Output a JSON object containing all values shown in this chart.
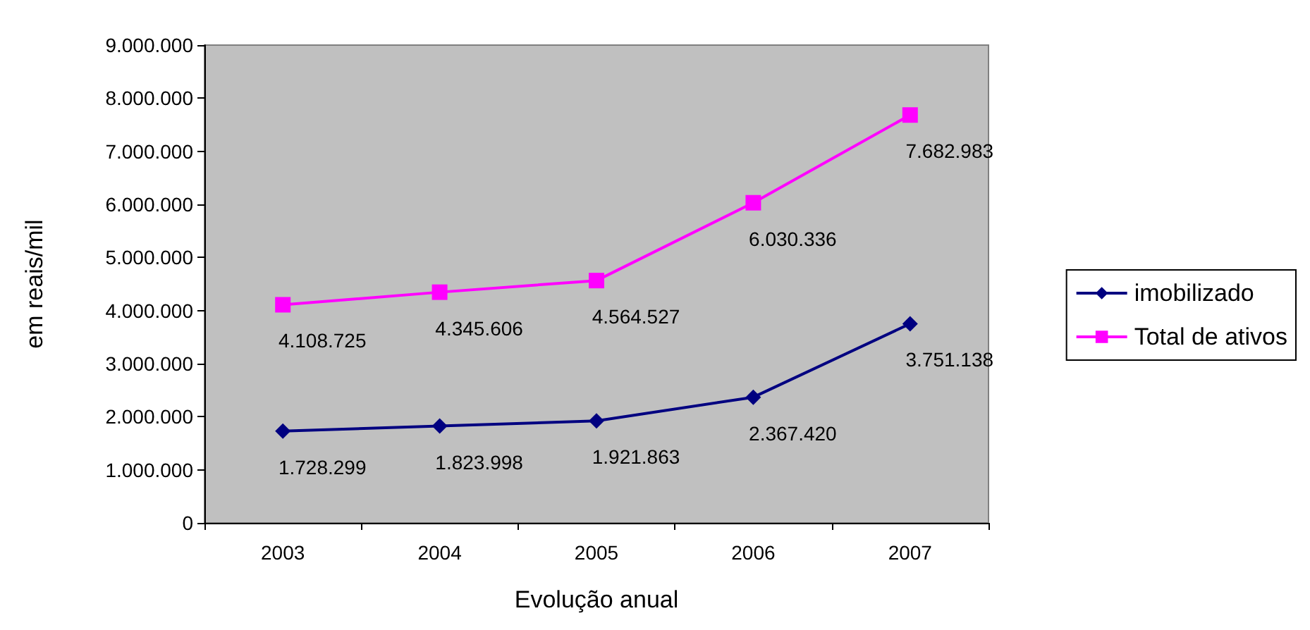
{
  "chart_data": {
    "type": "line",
    "xlabel": "Evolução anual",
    "ylabel": "em reais/mil",
    "categories": [
      "2003",
      "2004",
      "2005",
      "2006",
      "2007"
    ],
    "series": [
      {
        "name": "imobilizado",
        "color": "#000080",
        "marker": "diamond",
        "values": [
          1728299,
          1823998,
          1921863,
          2367420,
          3751138
        ],
        "value_labels": [
          "1.728.299",
          "1.823.998",
          "1.921.863",
          "2.367.420",
          "3.751.138"
        ]
      },
      {
        "name": "Total de ativos",
        "color": "#ff00ff",
        "marker": "square",
        "values": [
          4108725,
          4345606,
          4564527,
          6030336,
          7682983
        ],
        "value_labels": [
          "4.108.725",
          "4.345.606",
          "4.564.527",
          "6.030.336",
          "7.682.983"
        ]
      }
    ],
    "ylim": [
      0,
      9000000
    ],
    "yticks": [
      {
        "value": 0,
        "label": "0"
      },
      {
        "value": 1000000,
        "label": "1.000.000"
      },
      {
        "value": 2000000,
        "label": "2.000.000"
      },
      {
        "value": 3000000,
        "label": "3.000.000"
      },
      {
        "value": 4000000,
        "label": "4.000.000"
      },
      {
        "value": 5000000,
        "label": "5.000.000"
      },
      {
        "value": 6000000,
        "label": "6.000.000"
      },
      {
        "value": 7000000,
        "label": "7.000.000"
      },
      {
        "value": 8000000,
        "label": "8.000.000"
      },
      {
        "value": 9000000,
        "label": "9.000.000"
      }
    ],
    "grid": false,
    "legend": "right"
  }
}
